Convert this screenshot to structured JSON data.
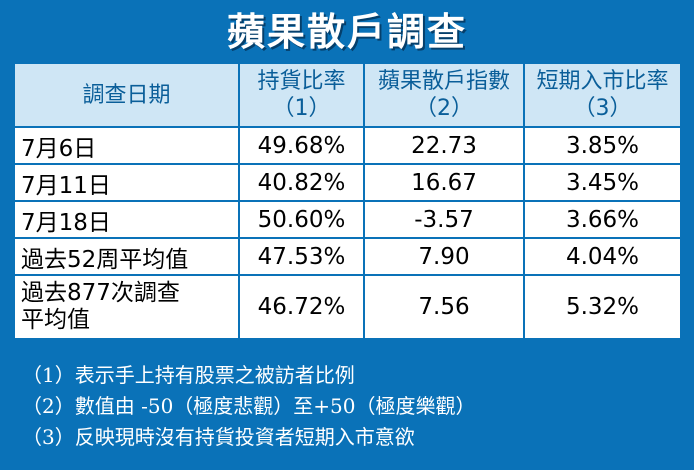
{
  "title": "蘋果散戶調查",
  "colors": {
    "background": "#0a72b8",
    "header_bg": "#cfe6f5",
    "header_text": "#0a5e99",
    "cell_bg": "#ffffff"
  },
  "chart_data": {
    "type": "table",
    "title": "蘋果散戶調查",
    "columns": [
      {
        "main": "調查日期",
        "sub": ""
      },
      {
        "main": "持貨比率",
        "sub": "（1）"
      },
      {
        "main": "蘋果散戶指數",
        "sub": "（2）"
      },
      {
        "main": "短期入市比率",
        "sub": "（3）"
      }
    ],
    "rows": [
      {
        "label": "7月6日",
        "holding_ratio": "49.68%",
        "index": "22.73",
        "short_term_entry": "3.85%"
      },
      {
        "label": "7月11日",
        "holding_ratio": "40.82%",
        "index": "16.67",
        "short_term_entry": "3.45%"
      },
      {
        "label": "7月18日",
        "holding_ratio": "50.60%",
        "index": "-3.57",
        "short_term_entry": "3.66%"
      },
      {
        "label": "過去52周平均值",
        "holding_ratio": "47.53%",
        "index": "7.90",
        "short_term_entry": "4.04%"
      },
      {
        "label_line1": "過去877次調查",
        "label_line2": "平均值",
        "holding_ratio": "46.72%",
        "index": "7.56",
        "short_term_entry": "5.32%"
      }
    ],
    "notes": [
      "（1）表示手上持有股票之被訪者比例",
      "（2）數值由 -50（極度悲觀）至+50（極度樂觀）",
      "（3）反映現時沒有持貨投資者短期入市意欲"
    ]
  }
}
